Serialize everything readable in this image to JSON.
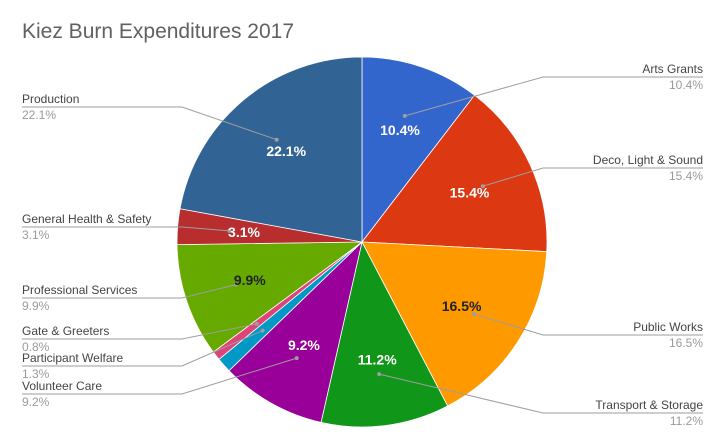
{
  "chart_data": {
    "type": "pie",
    "title": "Kiez Burn Expenditures 2017",
    "slices": [
      {
        "label": "Arts Grants",
        "value": 10.4,
        "display": "10.4%",
        "color": "#3366cc",
        "text_color": "#ffffff"
      },
      {
        "label": "Deco, Light & Sound",
        "value": 15.4,
        "display": "15.4%",
        "color": "#dc3912",
        "text_color": "#ffffff"
      },
      {
        "label": "Public Works",
        "value": 16.5,
        "display": "16.5%",
        "color": "#ff9900",
        "text_color": "#222222"
      },
      {
        "label": "Transport & Storage",
        "value": 11.2,
        "display": "11.2%",
        "color": "#109618",
        "text_color": "#ffffff"
      },
      {
        "label": "Volunteer Care",
        "value": 9.2,
        "display": "9.2%",
        "color": "#990099",
        "text_color": "#ffffff"
      },
      {
        "label": "Participant Welfare",
        "value": 1.3,
        "display": "1.3%",
        "color": "#0099c6",
        "text_color": "#ffffff"
      },
      {
        "label": "Gate & Greeters",
        "value": 0.8,
        "display": "0.8%",
        "color": "#dd4477",
        "text_color": "#ffffff"
      },
      {
        "label": "Professional Services",
        "value": 9.9,
        "display": "9.9%",
        "color": "#66aa00",
        "text_color": "#222222"
      },
      {
        "label": "General Health & Safety",
        "value": 3.1,
        "display": "3.1%",
        "color": "#b82e2e",
        "text_color": "#ffffff"
      },
      {
        "label": "Production",
        "value": 22.1,
        "display": "22.1%",
        "color": "#316395",
        "text_color": "#ffffff"
      }
    ],
    "legend": "outside labels with leader lines",
    "start_angle": "12 o'clock",
    "direction": "clockwise"
  }
}
